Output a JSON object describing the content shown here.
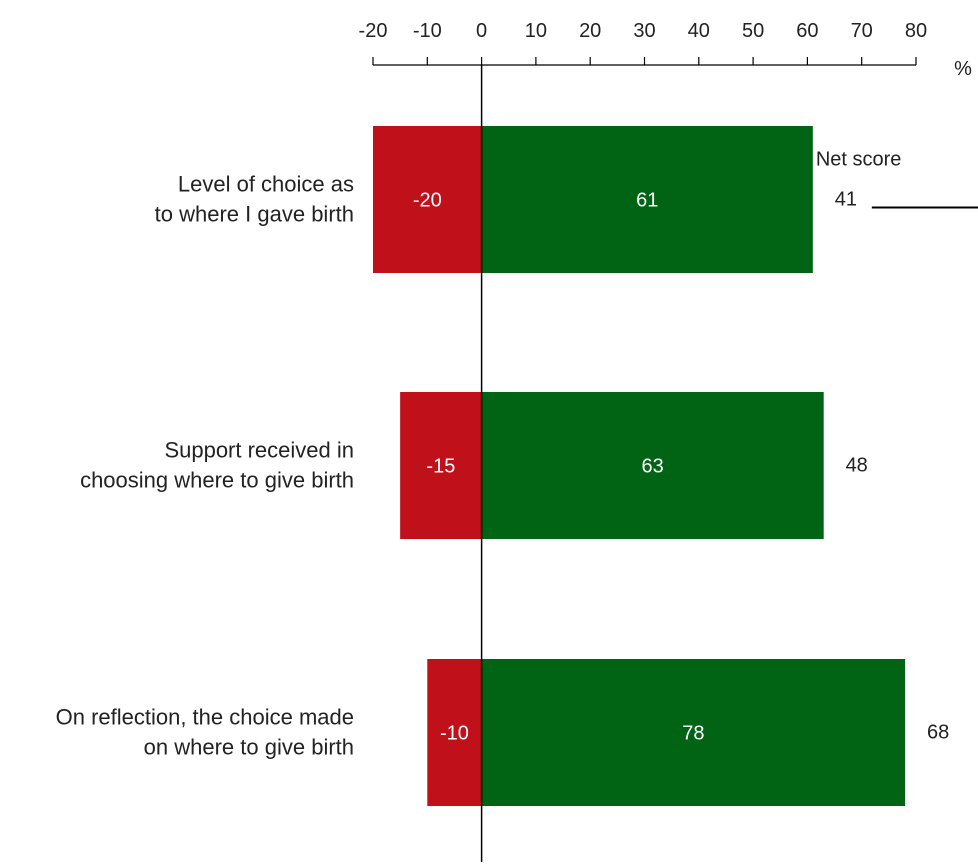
{
  "chart_data": {
    "type": "bar",
    "orientation": "horizontal",
    "stacked": true,
    "categories": [
      [
        "Level of choice as",
        "to where I gave birth"
      ],
      [
        "Support received in",
        "choosing where to give birth"
      ],
      [
        "On reflection, the choice made",
        "on where to give birth"
      ]
    ],
    "series": [
      {
        "color": "#c0111a",
        "values": [
          -20,
          -15,
          -10
        ]
      },
      {
        "color": "#006414",
        "values": [
          61,
          63,
          78
        ]
      }
    ],
    "net_score": {
      "header": "Net score",
      "values": [
        41,
        48,
        68
      ]
    },
    "xlim": [
      -20,
      80
    ],
    "xticks": [
      -20,
      -10,
      0,
      10,
      20,
      30,
      40,
      50,
      60,
      70,
      80
    ],
    "x_unit": "%",
    "axis_position": "top",
    "grid": false
  }
}
